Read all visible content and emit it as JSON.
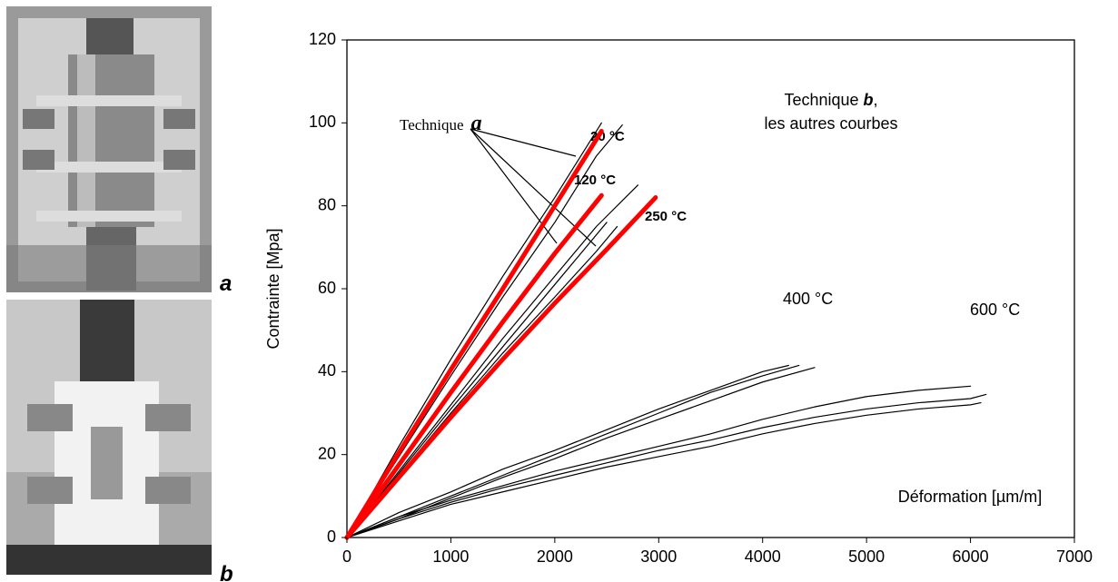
{
  "chart_data": {
    "type": "line",
    "ylabel": "Contrainte [Mpa]",
    "xlabel": "Déformation [µm/m]",
    "xlim": [
      0,
      7000
    ],
    "xticks": [
      0,
      1000,
      2000,
      3000,
      4000,
      5000,
      6000,
      7000
    ],
    "ylim": [
      0,
      120
    ],
    "yticks": [
      0,
      20,
      40,
      60,
      80,
      100,
      120
    ],
    "annotations": {
      "t20": "20 °C",
      "t120": "120 °C",
      "t250": "250 °C",
      "t400": "400 °C",
      "t600": "600 °C",
      "technique_a": [
        "Technique",
        "a"
      ],
      "technique_b": [
        "Technique",
        "b",
        ","
      ],
      "others": "les autres courbes"
    },
    "photo_labels": [
      "a",
      "b"
    ],
    "series": [
      {
        "color": "#000000",
        "x": [
          0,
          500,
          1000,
          1500,
          2000,
          2450
        ],
        "values": [
          0,
          22,
          43,
          63,
          82,
          100
        ]
      },
      {
        "color": "#000000",
        "x": [
          0,
          500,
          1000,
          1500,
          2000,
          2400,
          2650
        ],
        "values": [
          0,
          19.5,
          39,
          58,
          76,
          92,
          99.5
        ]
      },
      {
        "color": "#000000",
        "x": [
          0,
          500,
          1000,
          1500,
          2000,
          2400,
          2800
        ],
        "values": [
          0,
          16,
          32,
          48,
          63,
          75,
          85
        ]
      },
      {
        "color": "#000000",
        "x": [
          0,
          500,
          1000,
          1500,
          2000,
          2500
        ],
        "values": [
          0,
          15.5,
          31,
          46,
          61,
          76
        ]
      },
      {
        "color": "#000000",
        "x": [
          0,
          500,
          1000,
          1500,
          2000,
          2400,
          2600
        ],
        "values": [
          0,
          15,
          30,
          44.5,
          58,
          69,
          75
        ]
      },
      {
        "color": "#000000",
        "x": [
          0,
          500,
          1000,
          1500,
          2000,
          2500,
          3000,
          3500,
          4000,
          4350
        ],
        "values": [
          0,
          5,
          10,
          15,
          20,
          25,
          30,
          35,
          39,
          41.5
        ]
      },
      {
        "color": "#000000",
        "x": [
          0,
          500,
          1000,
          1500,
          2000,
          2500,
          3000,
          3500,
          4000,
          4500
        ],
        "values": [
          0,
          4.5,
          9.5,
          14.5,
          19,
          24,
          28.5,
          33,
          37.5,
          41
        ]
      },
      {
        "color": "#000000",
        "x": [
          0,
          500,
          1000,
          1500,
          2000,
          2500,
          3000,
          3500,
          4000,
          4250
        ],
        "values": [
          0,
          6,
          11,
          16.5,
          21,
          26,
          31,
          35.5,
          40,
          41.5
        ]
      },
      {
        "color": "#000000",
        "x": [
          0,
          500,
          1000,
          1500,
          2000,
          2500,
          3000,
          3500,
          4000,
          4500,
          5000,
          5500,
          6000
        ],
        "values": [
          0,
          5,
          9,
          12.5,
          16,
          19,
          22,
          25,
          28.5,
          31.5,
          34,
          35.5,
          36.5
        ]
      },
      {
        "color": "#000000",
        "x": [
          0,
          500,
          1000,
          1500,
          2000,
          2500,
          3000,
          3500,
          4000,
          4500,
          5000,
          5500,
          6000,
          6150
        ],
        "values": [
          0,
          4.5,
          8.5,
          12,
          15,
          18,
          21,
          23.5,
          26.5,
          29,
          31,
          32.5,
          33.5,
          34.5
        ]
      },
      {
        "color": "#000000",
        "x": [
          0,
          500,
          1000,
          1500,
          2000,
          2500,
          3000,
          3500,
          4000,
          4500,
          5000,
          5500,
          6000,
          6100
        ],
        "values": [
          0,
          4,
          8,
          11,
          14,
          17,
          19.5,
          22,
          25,
          27.5,
          29.5,
          31,
          32,
          32.5
        ]
      },
      {
        "color": "#ff0000",
        "x": [
          0,
          500,
          1000,
          1500,
          2000,
          2450
        ],
        "values": [
          0,
          20.5,
          40.5,
          60,
          80,
          98
        ]
      },
      {
        "color": "#ff0000",
        "x": [
          0,
          500,
          1000,
          1500,
          2000,
          2450
        ],
        "values": [
          0,
          17.5,
          35,
          52,
          68.5,
          82.5
        ]
      },
      {
        "color": "#ff0000",
        "x": [
          0,
          500,
          1000,
          1500,
          2000,
          2500,
          2970
        ],
        "values": [
          0,
          14.5,
          29,
          43,
          56.5,
          69.5,
          82
        ]
      }
    ]
  }
}
